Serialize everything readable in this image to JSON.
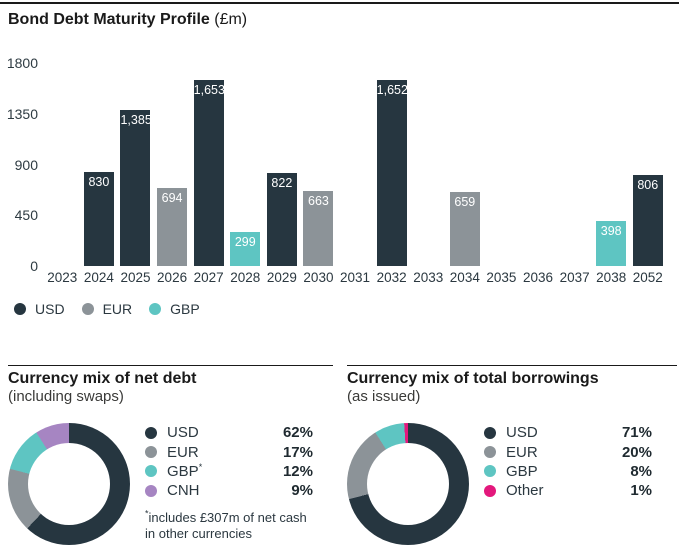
{
  "page": {
    "title_bold": "Bond Debt Maturity Profile",
    "title_unit": "(£m)"
  },
  "colors": {
    "USD": "#263640",
    "EUR": "#8c9398",
    "GBP": "#5ec5c2",
    "CNH": "#a685c2",
    "Other": "#e3187c"
  },
  "chart_data": [
    {
      "id": "maturity-profile",
      "type": "bar",
      "title": "Bond Debt Maturity Profile (£m)",
      "ylabel": "",
      "xlabel": "",
      "ylim": [
        0,
        1800
      ],
      "y_ticks": [
        0,
        450,
        900,
        1350,
        1800
      ],
      "grid": false,
      "legend_position": "bottom-left",
      "legend": [
        "USD",
        "EUR",
        "GBP"
      ],
      "bars": [
        {
          "year": "2023",
          "value": null,
          "label": "",
          "currency": null
        },
        {
          "year": "2024",
          "value": 830,
          "label": "830",
          "currency": "USD"
        },
        {
          "year": "2025",
          "value": 1385,
          "label": "1,385",
          "currency": "USD"
        },
        {
          "year": "2026",
          "value": 694,
          "label": "694",
          "currency": "EUR"
        },
        {
          "year": "2027",
          "value": 1653,
          "label": "1,653",
          "currency": "USD"
        },
        {
          "year": "2028",
          "value": 299,
          "label": "299",
          "currency": "GBP"
        },
        {
          "year": "2029",
          "value": 822,
          "label": "822",
          "currency": "USD"
        },
        {
          "year": "2030",
          "value": 663,
          "label": "663",
          "currency": "EUR"
        },
        {
          "year": "2031",
          "value": null,
          "label": "",
          "currency": null
        },
        {
          "year": "2032",
          "value": 1652,
          "label": "1,652",
          "currency": "USD"
        },
        {
          "year": "2033",
          "value": null,
          "label": "",
          "currency": null
        },
        {
          "year": "2034",
          "value": 659,
          "label": "659",
          "currency": "EUR"
        },
        {
          "year": "2035",
          "value": null,
          "label": "",
          "currency": null
        },
        {
          "year": "2036",
          "value": null,
          "label": "",
          "currency": null
        },
        {
          "year": "2037",
          "value": null,
          "label": "",
          "currency": null
        },
        {
          "year": "2038",
          "value": 398,
          "label": "398",
          "currency": "GBP"
        },
        {
          "year": "2052",
          "value": 806,
          "label": "806",
          "currency": "USD"
        }
      ]
    },
    {
      "id": "net-debt",
      "type": "pie",
      "title": "Currency mix of net debt",
      "subtitle": "(including swaps)",
      "donut": true,
      "start_angle": "top-clockwise",
      "slices": [
        {
          "label": "USD",
          "key": "USD",
          "pct": 62
        },
        {
          "label": "EUR",
          "key": "EUR",
          "pct": 17
        },
        {
          "label": "GBP*",
          "key": "GBP",
          "pct": 12
        },
        {
          "label": "CNH",
          "key": "CNH",
          "pct": 9
        }
      ],
      "footnote": "*includes £307m of net cash\nin other currencies"
    },
    {
      "id": "total-borrowings",
      "type": "pie",
      "title": "Currency mix of total borrowings",
      "subtitle": "(as issued)",
      "donut": true,
      "start_angle": "top-clockwise",
      "slices": [
        {
          "label": "USD",
          "key": "USD",
          "pct": 71
        },
        {
          "label": "EUR",
          "key": "EUR",
          "pct": 20
        },
        {
          "label": "GBP",
          "key": "GBP",
          "pct": 8
        },
        {
          "label": "Other",
          "key": "Other",
          "pct": 1
        }
      ]
    }
  ]
}
